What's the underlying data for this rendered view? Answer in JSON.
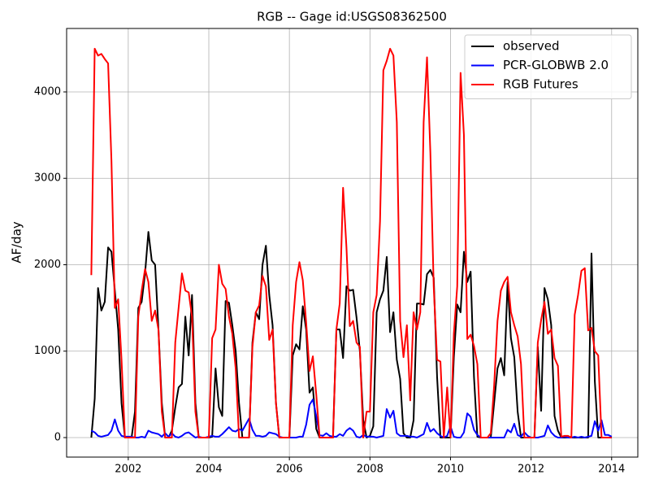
{
  "chart_data": {
    "type": "line",
    "title": "RGB -- Gage id:USGS08362500",
    "ylabel": "AF/day",
    "xlim": [
      2000.47,
      2014.65
    ],
    "ylim": [
      -226,
      4734
    ],
    "xticks": [
      2002,
      2004,
      2006,
      2008,
      2010,
      2012,
      2014
    ],
    "yticks": [
      0,
      1000,
      2000,
      3000,
      4000
    ],
    "grid": true,
    "legend": "upper right",
    "x": [
      2001.083,
      2001.167,
      2001.25,
      2001.333,
      2001.417,
      2001.5,
      2001.583,
      2001.667,
      2001.75,
      2001.833,
      2001.917,
      2002.0,
      2002.083,
      2002.167,
      2002.25,
      2002.333,
      2002.417,
      2002.5,
      2002.583,
      2002.667,
      2002.75,
      2002.833,
      2002.917,
      2003.0,
      2003.083,
      2003.167,
      2003.25,
      2003.333,
      2003.417,
      2003.5,
      2003.583,
      2003.667,
      2003.75,
      2003.833,
      2003.917,
      2004.0,
      2004.083,
      2004.167,
      2004.25,
      2004.333,
      2004.417,
      2004.5,
      2004.583,
      2004.667,
      2004.75,
      2004.833,
      2004.917,
      2005.0,
      2005.083,
      2005.167,
      2005.25,
      2005.333,
      2005.417,
      2005.5,
      2005.583,
      2005.667,
      2005.75,
      2005.833,
      2005.917,
      2006.0,
      2006.083,
      2006.167,
      2006.25,
      2006.333,
      2006.417,
      2006.5,
      2006.583,
      2006.667,
      2006.75,
      2006.833,
      2006.917,
      2007.0,
      2007.083,
      2007.167,
      2007.25,
      2007.333,
      2007.417,
      2007.5,
      2007.583,
      2007.667,
      2007.75,
      2007.833,
      2007.917,
      2008.0,
      2008.083,
      2008.167,
      2008.25,
      2008.333,
      2008.417,
      2008.5,
      2008.583,
      2008.667,
      2008.75,
      2008.833,
      2008.917,
      2009.0,
      2009.083,
      2009.167,
      2009.25,
      2009.333,
      2009.417,
      2009.5,
      2009.583,
      2009.667,
      2009.75,
      2009.833,
      2009.917,
      2010.0,
      2010.083,
      2010.167,
      2010.25,
      2010.333,
      2010.417,
      2010.5,
      2010.583,
      2010.667,
      2010.75,
      2010.833,
      2010.917,
      2011.0,
      2011.083,
      2011.167,
      2011.25,
      2011.333,
      2011.417,
      2011.5,
      2011.583,
      2011.667,
      2011.75,
      2011.833,
      2011.917,
      2012.0,
      2012.083,
      2012.167,
      2012.25,
      2012.333,
      2012.417,
      2012.5,
      2012.583,
      2012.667,
      2012.75,
      2012.833,
      2012.917,
      2013.0,
      2013.083,
      2013.167,
      2013.25,
      2013.333,
      2013.417,
      2013.5,
      2013.583,
      2013.667,
      2013.75,
      2013.833,
      2013.917,
      2014.0
    ],
    "series": [
      {
        "name": "observed",
        "color": "#000000",
        "values": [
          0,
          450,
          1730,
          1470,
          1570,
          2200,
          2150,
          1700,
          1250,
          400,
          0,
          0,
          0,
          300,
          1500,
          1570,
          1900,
          2380,
          2050,
          2000,
          1250,
          400,
          0,
          0,
          80,
          350,
          580,
          620,
          1400,
          950,
          1650,
          400,
          0,
          0,
          0,
          0,
          10,
          800,
          350,
          250,
          1580,
          1560,
          1300,
          1000,
          400,
          0,
          0,
          0,
          1100,
          1450,
          1370,
          2000,
          2220,
          1650,
          1300,
          400,
          0,
          0,
          0,
          0,
          950,
          1080,
          1020,
          1520,
          1250,
          520,
          580,
          100,
          0,
          0,
          0,
          0,
          0,
          1250,
          1250,
          920,
          1750,
          1700,
          1710,
          1390,
          1000,
          200,
          0,
          20,
          130,
          1450,
          1600,
          1700,
          2090,
          1220,
          1450,
          900,
          680,
          50,
          0,
          0,
          200,
          1550,
          1550,
          1540,
          1890,
          1940,
          1850,
          700,
          0,
          0,
          0,
          0,
          930,
          1540,
          1450,
          2150,
          1800,
          1920,
          700,
          10,
          0,
          0,
          0,
          0,
          400,
          800,
          920,
          720,
          1800,
          1150,
          930,
          300,
          0,
          0,
          0,
          0,
          0,
          1050,
          310,
          1730,
          1600,
          1300,
          250,
          80,
          0,
          0,
          0,
          0,
          0,
          0,
          0,
          0,
          0,
          2130,
          650,
          0,
          0,
          0,
          0,
          0
        ]
      },
      {
        "name": "PCR-GLOBWB 2.0",
        "color": "#0000ff",
        "values": [
          80,
          60,
          20,
          10,
          20,
          30,
          80,
          210,
          80,
          20,
          10,
          10,
          10,
          0,
          0,
          10,
          0,
          80,
          60,
          50,
          40,
          10,
          50,
          10,
          50,
          10,
          0,
          20,
          50,
          60,
          30,
          0,
          10,
          0,
          0,
          10,
          20,
          10,
          10,
          40,
          80,
          120,
          80,
          70,
          100,
          80,
          150,
          220,
          90,
          20,
          20,
          10,
          20,
          60,
          50,
          40,
          10,
          0,
          0,
          0,
          0,
          0,
          10,
          10,
          150,
          380,
          440,
          250,
          30,
          20,
          50,
          20,
          10,
          10,
          40,
          20,
          80,
          110,
          80,
          10,
          0,
          30,
          10,
          10,
          10,
          0,
          10,
          20,
          330,
          230,
          310,
          50,
          20,
          20,
          20,
          10,
          10,
          0,
          20,
          40,
          170,
          70,
          100,
          50,
          20,
          0,
          20,
          130,
          10,
          0,
          0,
          60,
          280,
          240,
          90,
          30,
          0,
          0,
          0,
          0,
          0,
          0,
          0,
          0,
          90,
          60,
          160,
          30,
          10,
          60,
          20,
          0,
          0,
          0,
          10,
          20,
          140,
          60,
          20,
          0,
          0,
          10,
          0,
          0,
          10,
          0,
          10,
          0,
          10,
          20,
          190,
          80,
          200,
          30,
          30,
          10
        ]
      },
      {
        "name": "RGB Futures",
        "color": "#ff0000",
        "values": [
          1880,
          4500,
          4420,
          4440,
          4380,
          4330,
          3200,
          1500,
          1600,
          900,
          0,
          0,
          0,
          0,
          1400,
          1700,
          1950,
          1800,
          1350,
          1470,
          1250,
          300,
          0,
          0,
          0,
          1100,
          1500,
          1900,
          1700,
          1680,
          1400,
          300,
          0,
          0,
          0,
          0,
          1150,
          1250,
          2000,
          1780,
          1720,
          1400,
          1200,
          800,
          0,
          0,
          0,
          0,
          1050,
          1450,
          1530,
          1870,
          1750,
          1130,
          1250,
          400,
          0,
          0,
          0,
          0,
          1300,
          1800,
          2030,
          1820,
          1330,
          770,
          940,
          500,
          0,
          0,
          0,
          0,
          0,
          1250,
          1550,
          2890,
          2200,
          1290,
          1350,
          1100,
          1050,
          0,
          300,
          300,
          1450,
          1650,
          2500,
          4250,
          4360,
          4500,
          4420,
          3650,
          1350,
          930,
          1300,
          430,
          1450,
          1250,
          1450,
          3650,
          4400,
          3300,
          1750,
          900,
          880,
          0,
          580,
          0,
          1200,
          1750,
          4220,
          3500,
          1140,
          1190,
          1060,
          850,
          0,
          0,
          0,
          50,
          600,
          1350,
          1700,
          1800,
          1860,
          1450,
          1300,
          1170,
          850,
          0,
          0,
          0,
          0,
          1100,
          1360,
          1570,
          1200,
          1250,
          920,
          830,
          10,
          20,
          20,
          0,
          1420,
          1650,
          1930,
          1960,
          1240,
          1270,
          1000,
          950,
          0,
          0,
          0,
          0
        ]
      }
    ]
  }
}
